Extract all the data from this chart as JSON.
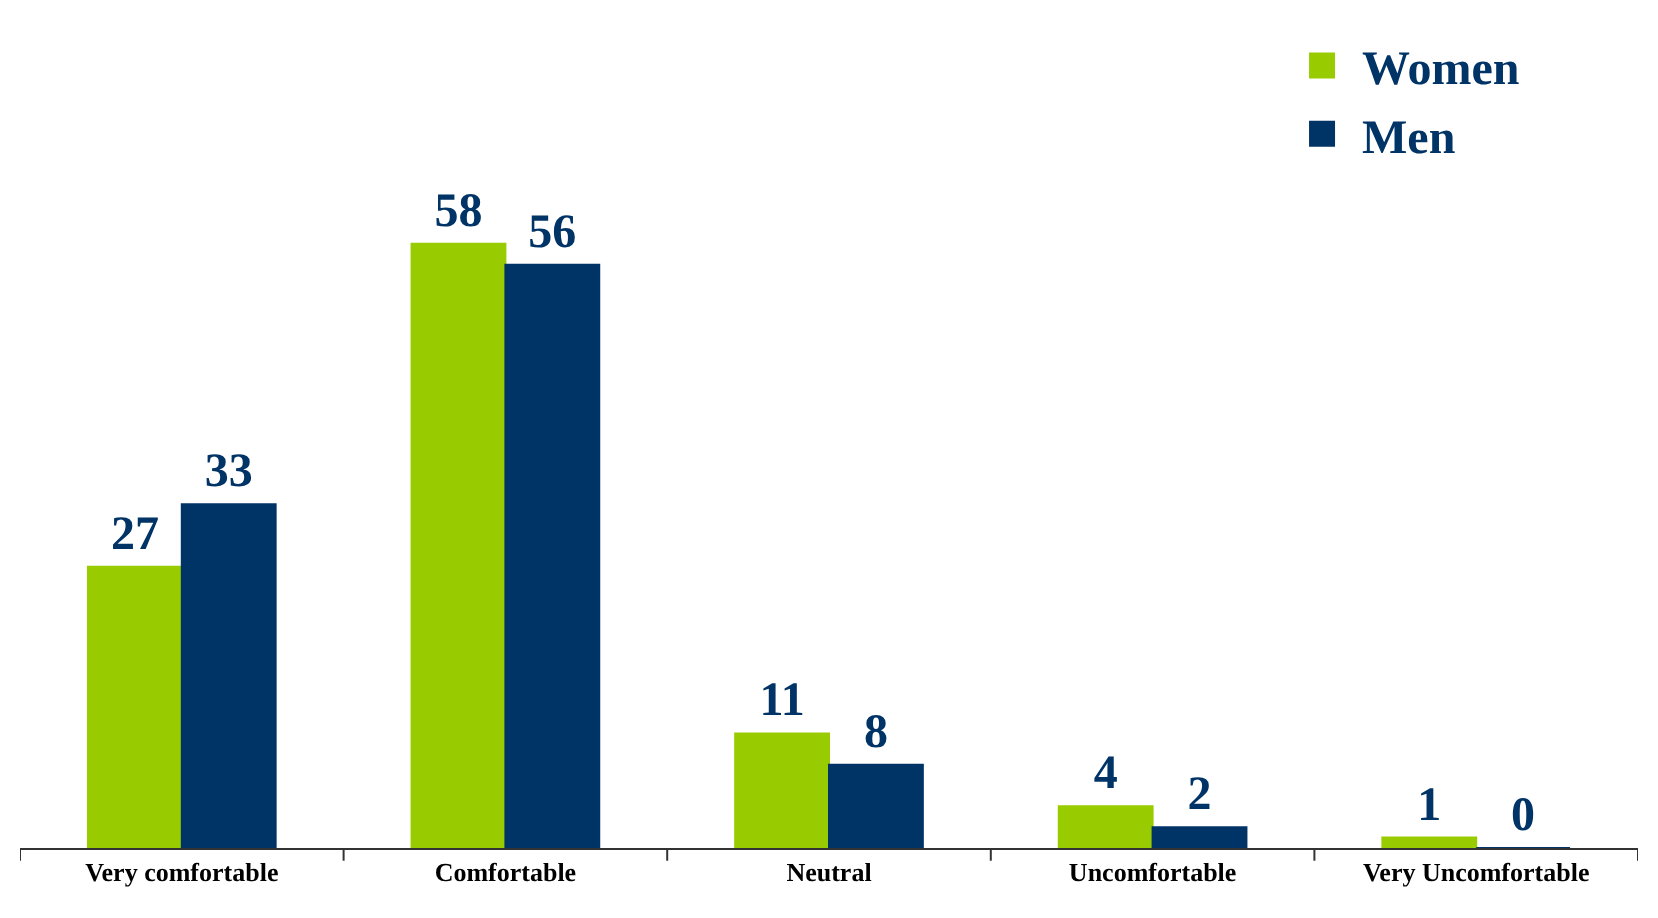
{
  "chart_data": {
    "type": "bar",
    "categories": [
      "Very comfortable",
      "Comfortable",
      "Neutral",
      "Uncomfortable",
      "Very Uncomfortable"
    ],
    "series": [
      {
        "name": "Women",
        "color": "#99cc00",
        "values": [
          27,
          58,
          11,
          4,
          1
        ]
      },
      {
        "name": "Men",
        "color": "#003366",
        "values": [
          33,
          56,
          8,
          2,
          0
        ]
      }
    ],
    "data_labels": true,
    "legend": "top right"
  }
}
